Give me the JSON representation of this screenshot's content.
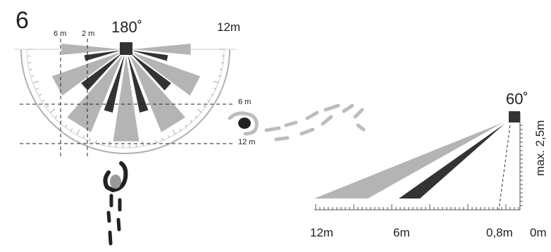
{
  "step_number": "6",
  "top_view": {
    "angle_label": "180˚",
    "range_label": "12m",
    "dist_marks": {
      "x_6m": "6 m",
      "x_2m": "2 m",
      "y_6m": "6 m",
      "y_12m": "12 m"
    }
  },
  "side_view": {
    "angle_label": "60˚",
    "height_label": "max. 2,5m",
    "axis_labels": [
      "12m",
      "6m",
      "0,8m",
      "0m"
    ]
  },
  "colors": {
    "dark": "#333333",
    "light": "#b4b4b4",
    "line": "#555555",
    "pale": "#c8c8c8"
  }
}
